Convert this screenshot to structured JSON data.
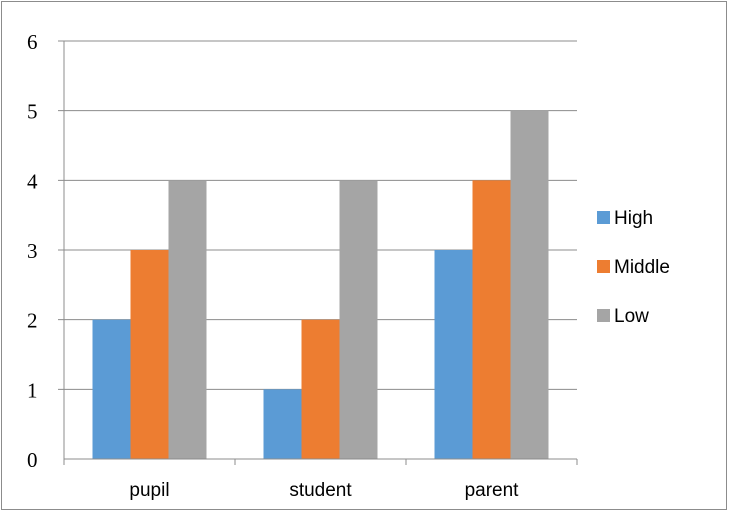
{
  "chart_data": {
    "type": "bar",
    "categories": [
      "pupil",
      "student",
      "parent"
    ],
    "series": [
      {
        "name": "High",
        "values": [
          2,
          1,
          3
        ],
        "color": "#5b9bd5"
      },
      {
        "name": "Middle",
        "values": [
          3,
          2,
          4
        ],
        "color": "#ed7d31"
      },
      {
        "name": "Low",
        "values": [
          4,
          4,
          5
        ],
        "color": "#a5a5a5"
      }
    ],
    "title": "",
    "xlabel": "",
    "ylabel": "",
    "ylim": [
      0,
      6
    ],
    "yticks": [
      "0",
      "1",
      "2",
      "3",
      "4",
      "5",
      "6"
    ],
    "grid": true,
    "legend_position": "right"
  }
}
